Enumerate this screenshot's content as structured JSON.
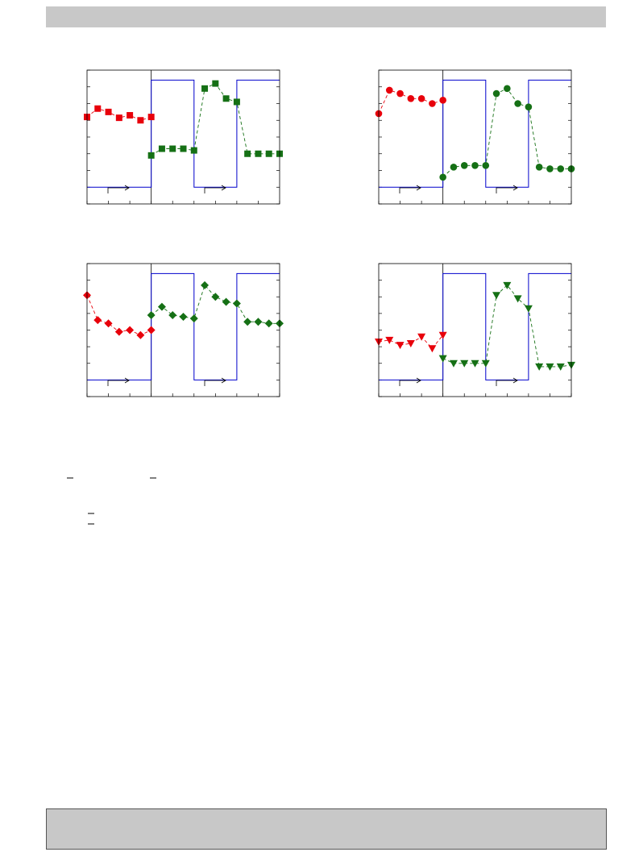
{
  "chart_data": [
    {
      "type": "line",
      "marker": "square",
      "xlim": [
        0,
        18
      ],
      "ylim": [
        0,
        8
      ],
      "xticks": [
        0,
        2,
        4,
        6,
        8,
        10,
        12,
        14,
        16,
        18
      ],
      "yticks": [
        0,
        1,
        2,
        3,
        4,
        5,
        6,
        7,
        8
      ],
      "divider": 6,
      "series": [
        {
          "color": "#0000cc",
          "style": "step",
          "x": [
            0,
            6,
            6,
            10,
            10,
            14,
            14,
            18
          ],
          "values": [
            1,
            1,
            7.4,
            7.4,
            1,
            1,
            7.4,
            7.4
          ]
        },
        {
          "color": "#e8000b",
          "style": "dashed",
          "x": [
            0,
            1,
            2,
            3,
            4,
            5,
            6
          ],
          "values": [
            5.2,
            5.7,
            5.5,
            5.15,
            5.3,
            5.0,
            5.2
          ]
        },
        {
          "color": "#157015",
          "style": "dashed",
          "x": [
            6,
            7,
            8,
            9,
            10,
            11,
            12,
            13,
            14,
            15,
            16,
            17,
            18
          ],
          "values": [
            2.9,
            3.3,
            3.3,
            3.3,
            3.2,
            6.9,
            7.2,
            6.3,
            6.1,
            3.0,
            3.0,
            3.0,
            3.0
          ]
        }
      ]
    },
    {
      "type": "line",
      "marker": "circle",
      "xlim": [
        0,
        18
      ],
      "ylim": [
        0,
        8
      ],
      "xticks": [
        0,
        2,
        4,
        6,
        8,
        10,
        12,
        14,
        16,
        18
      ],
      "yticks": [
        0,
        1,
        2,
        3,
        4,
        5,
        6,
        7,
        8
      ],
      "divider": 6,
      "series": [
        {
          "color": "#0000cc",
          "style": "step",
          "x": [
            0,
            6,
            6,
            10,
            10,
            14,
            14,
            18
          ],
          "values": [
            1,
            1,
            7.4,
            7.4,
            1,
            1,
            7.4,
            7.4
          ]
        },
        {
          "color": "#e8000b",
          "style": "dashed",
          "x": [
            0,
            1,
            2,
            3,
            4,
            5,
            6
          ],
          "values": [
            5.4,
            6.8,
            6.6,
            6.3,
            6.3,
            6.0,
            6.2
          ]
        },
        {
          "color": "#157015",
          "style": "dashed",
          "x": [
            6,
            7,
            8,
            9,
            10,
            11,
            12,
            13,
            14,
            15,
            16,
            17,
            18
          ],
          "values": [
            1.6,
            2.2,
            2.3,
            2.3,
            2.3,
            6.6,
            6.9,
            6.0,
            5.8,
            2.2,
            2.1,
            2.1,
            2.1
          ]
        }
      ]
    },
    {
      "type": "line",
      "marker": "diamond",
      "xlim": [
        0,
        18
      ],
      "ylim": [
        0,
        8
      ],
      "xticks": [
        0,
        2,
        4,
        6,
        8,
        10,
        12,
        14,
        16,
        18
      ],
      "yticks": [
        0,
        1,
        2,
        3,
        4,
        5,
        6,
        7,
        8
      ],
      "divider": 6,
      "series": [
        {
          "color": "#0000cc",
          "style": "step",
          "x": [
            0,
            6,
            6,
            10,
            10,
            14,
            14,
            18
          ],
          "values": [
            1,
            1,
            7.4,
            7.4,
            1,
            1,
            7.4,
            7.4
          ]
        },
        {
          "color": "#e8000b",
          "style": "dashed",
          "x": [
            0,
            1,
            2,
            3,
            4,
            5,
            6
          ],
          "values": [
            6.1,
            4.6,
            4.4,
            3.9,
            4.0,
            3.7,
            4.0
          ]
        },
        {
          "color": "#157015",
          "style": "dashed",
          "x": [
            6,
            7,
            8,
            9,
            10,
            11,
            12,
            13,
            14,
            15,
            16,
            17,
            18
          ],
          "values": [
            4.9,
            5.4,
            4.9,
            4.8,
            4.7,
            6.7,
            6.0,
            5.7,
            5.6,
            4.5,
            4.5,
            4.4,
            4.4
          ]
        }
      ]
    },
    {
      "type": "line",
      "marker": "triangle-down",
      "xlim": [
        0,
        18
      ],
      "ylim": [
        0,
        8
      ],
      "xticks": [
        0,
        2,
        4,
        6,
        8,
        10,
        12,
        14,
        16,
        18
      ],
      "yticks": [
        0,
        1,
        2,
        3,
        4,
        5,
        6,
        7,
        8
      ],
      "divider": 6,
      "series": [
        {
          "color": "#0000cc",
          "style": "step",
          "x": [
            0,
            6,
            6,
            10,
            10,
            14,
            14,
            18
          ],
          "values": [
            1,
            1,
            7.4,
            7.4,
            1,
            1,
            7.4,
            7.4
          ]
        },
        {
          "color": "#e8000b",
          "style": "dashed",
          "x": [
            0,
            1,
            2,
            3,
            4,
            5,
            6
          ],
          "values": [
            3.3,
            3.4,
            3.1,
            3.2,
            3.6,
            2.9,
            3.7
          ]
        },
        {
          "color": "#157015",
          "style": "dashed",
          "x": [
            6,
            7,
            8,
            9,
            10,
            11,
            12,
            13,
            14,
            15,
            16,
            17,
            18
          ],
          "values": [
            2.3,
            2.0,
            2.0,
            2.0,
            2.0,
            6.1,
            6.7,
            5.9,
            5.3,
            1.8,
            1.8,
            1.8,
            1.9
          ]
        }
      ]
    }
  ]
}
